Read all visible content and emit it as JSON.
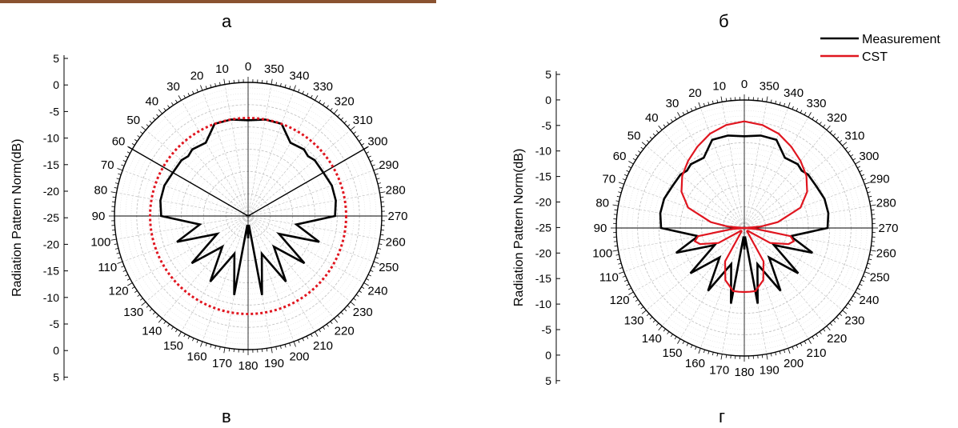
{
  "panels": {
    "a": "а",
    "b": "б",
    "c": "в",
    "d": "г"
  },
  "legend": {
    "measurement": "Measurement",
    "cst": "CST"
  },
  "colors": {
    "measurement": "#000000",
    "cst": "#e0151f",
    "grid": "#bdbdbd",
    "photo_strip": "#8a5230"
  },
  "chart_data": [
    {
      "type": "polar-line",
      "panel": "в",
      "ylabel": "Radiation Pattern Norm(dB)",
      "radial_ticks": [
        "5",
        "0",
        "-5",
        "-10",
        "-15",
        "-20",
        "-25",
        "-20",
        "-15",
        "-10",
        "-5",
        "0",
        "5"
      ],
      "angle_labels": [
        "0",
        "10",
        "20",
        "30",
        "40",
        "50",
        "60",
        "70",
        "80",
        "90",
        "100",
        "110",
        "120",
        "130",
        "140",
        "150",
        "160",
        "170",
        "180",
        "190",
        "200",
        "210",
        "220",
        "230",
        "240",
        "250",
        "260",
        "270",
        "280",
        "290",
        "300",
        "310",
        "320",
        "330",
        "340",
        "350"
      ],
      "rlim": [
        -25,
        5
      ],
      "grid": true,
      "reference_lines_deg": [
        60,
        300
      ],
      "series": [
        {
          "name": "Measurement",
          "angles": [
            0,
            10,
            20,
            30,
            40,
            45,
            50,
            60,
            70,
            80,
            90,
            100,
            110,
            120,
            130,
            140,
            150,
            160,
            170,
            175,
            180,
            185,
            190,
            200,
            210,
            220,
            230,
            240,
            250,
            260,
            270,
            280,
            290,
            300,
            310,
            315,
            320,
            330,
            340,
            350
          ],
          "values": [
            -3.5,
            -3,
            -3,
            -6,
            -5.5,
            -6,
            -5.5,
            -5.5,
            -5,
            -5,
            -5.5,
            -14,
            -8,
            -17,
            -8.5,
            -16,
            -8,
            -16,
            -7,
            -23,
            -20,
            -23,
            -7,
            -16,
            -8,
            -16,
            -8.5,
            -17,
            -8,
            -14,
            -5.5,
            -5,
            -5,
            -5.5,
            -5.5,
            -6,
            -5.5,
            -6,
            -3,
            -3
          ]
        },
        {
          "name": "",
          "style": "dotted",
          "constant_value": -3
        }
      ]
    },
    {
      "type": "polar-line",
      "panel": "г",
      "ylabel": "Radiation Pattern Norm(dB)",
      "radial_ticks": [
        "5",
        "0",
        "-5",
        "-10",
        "-15",
        "-20",
        "-25",
        "-20",
        "-15",
        "-10",
        "-5",
        "0",
        "5"
      ],
      "angle_labels": [
        "0",
        "10",
        "20",
        "30",
        "40",
        "50",
        "60",
        "70",
        "80",
        "90",
        "100",
        "110",
        "120",
        "130",
        "140",
        "150",
        "160",
        "170",
        "180",
        "190",
        "200",
        "210",
        "220",
        "230",
        "240",
        "250",
        "260",
        "270",
        "280",
        "290",
        "300",
        "310",
        "320",
        "330",
        "340",
        "350"
      ],
      "rlim": [
        -25,
        5
      ],
      "grid": true,
      "legend_position": "top-right",
      "series": [
        {
          "name": "Measurement",
          "angles": [
            0,
            10,
            20,
            30,
            40,
            45,
            50,
            60,
            70,
            80,
            90,
            100,
            110,
            120,
            130,
            140,
            150,
            160,
            170,
            175,
            180,
            185,
            190,
            200,
            210,
            220,
            230,
            240,
            250,
            260,
            270,
            280,
            290,
            300,
            310,
            315,
            320,
            330,
            340,
            350
          ],
          "values": [
            -3.5,
            -3,
            -3,
            -6,
            -5.5,
            -6,
            -5.5,
            -5.5,
            -5,
            -5,
            -5.5,
            -14,
            -8,
            -17,
            -8.5,
            -16,
            -8,
            -16,
            -7,
            -23,
            -20,
            -23,
            -7,
            -16,
            -8,
            -16,
            -8.5,
            -17,
            -8,
            -14,
            -5.5,
            -5,
            -5,
            -5.5,
            -5.5,
            -6,
            -5.5,
            -6,
            -3,
            -3
          ]
        },
        {
          "name": "CST",
          "angles": [
            0,
            10,
            20,
            30,
            40,
            50,
            60,
            70,
            80,
            85,
            90,
            95,
            100,
            105,
            110,
            120,
            130,
            140,
            150,
            160,
            170,
            175,
            180,
            185,
            190,
            200,
            210,
            220,
            230,
            240,
            250,
            255,
            260,
            265,
            270,
            275,
            280,
            290,
            300,
            310,
            320,
            330,
            340,
            350
          ],
          "values": [
            0,
            -0.5,
            -1.5,
            -3,
            -4.5,
            -6,
            -8,
            -11,
            -17,
            -21,
            -25,
            -22,
            -14,
            -13,
            -14,
            -18,
            -24,
            -24,
            -16,
            -12,
            -10,
            -10,
            -10,
            -10,
            -10,
            -12,
            -16,
            -24,
            -24,
            -18,
            -14,
            -13,
            -14,
            -22,
            -25,
            -21,
            -17,
            -11,
            -8,
            -6,
            -4.5,
            -3,
            -1.5,
            -0.5
          ]
        }
      ]
    }
  ]
}
